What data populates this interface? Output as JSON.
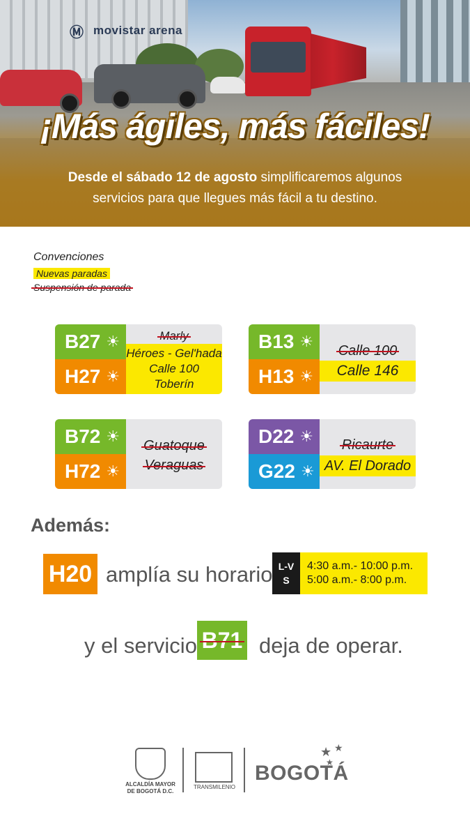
{
  "hero": {
    "stadium_sign": "movistar arena",
    "headline": "¡Más ágiles, más fáciles!",
    "subtitle_bold": "Desde el sábado 12 de agosto",
    "subtitle_rest": " simplificaremos algunos servicios para que llegues más fácil a tu destino."
  },
  "legend": {
    "title": "Convenciones",
    "new_stops": "Nuevas paradas",
    "suspended": "Suspensión de parada"
  },
  "cards": [
    {
      "top": {
        "code": "B27",
        "symbol": "☀",
        "color": "#76b82a"
      },
      "bottom": {
        "code": "H27",
        "symbol": "☀",
        "color": "#f18a00"
      },
      "suspended": [
        "Marly"
      ],
      "new": [
        "Héroes - Gel'hada",
        "Calle 100",
        "Toberín"
      ]
    },
    {
      "top": {
        "code": "B13",
        "symbol": "☀",
        "color": "#76b82a"
      },
      "bottom": {
        "code": "H13",
        "symbol": "☀",
        "color": "#f18a00"
      },
      "suspended": [
        "Calle 100"
      ],
      "new": [
        "Calle 146"
      ]
    },
    {
      "top": {
        "code": "B72",
        "symbol": "☀",
        "color": "#76b82a"
      },
      "bottom": {
        "code": "H72",
        "symbol": "☀",
        "color": "#f18a00"
      },
      "suspended": [
        "Guatoque",
        "Veraguas"
      ],
      "new": []
    },
    {
      "top": {
        "code": "D22",
        "symbol": "☀",
        "color": "#7b57a6"
      },
      "bottom": {
        "code": "G22",
        "symbol": "☀",
        "color": "#1a9ad6"
      },
      "suspended": [
        "Ricaurte"
      ],
      "new": [
        "AV. El Dorado"
      ]
    }
  ],
  "ademas": {
    "label": "Además:",
    "h20_code": "H20",
    "h20_text": "amplía su horario:",
    "days": [
      "L-V",
      "S"
    ],
    "hours": [
      "4:30 a.m.- 10:00 p.m.",
      "5:00 a.m.- 8:00 p.m."
    ],
    "pre_text": "y el servicio",
    "b71_code": "B71",
    "post_text": "deja de operar."
  },
  "footer": {
    "alcaldia": "ALCALDÍA MAYOR DE BOGOTÁ D.C.",
    "transmilenio": "TRANSMILENIO",
    "bogota": "BOGOTÁ"
  }
}
